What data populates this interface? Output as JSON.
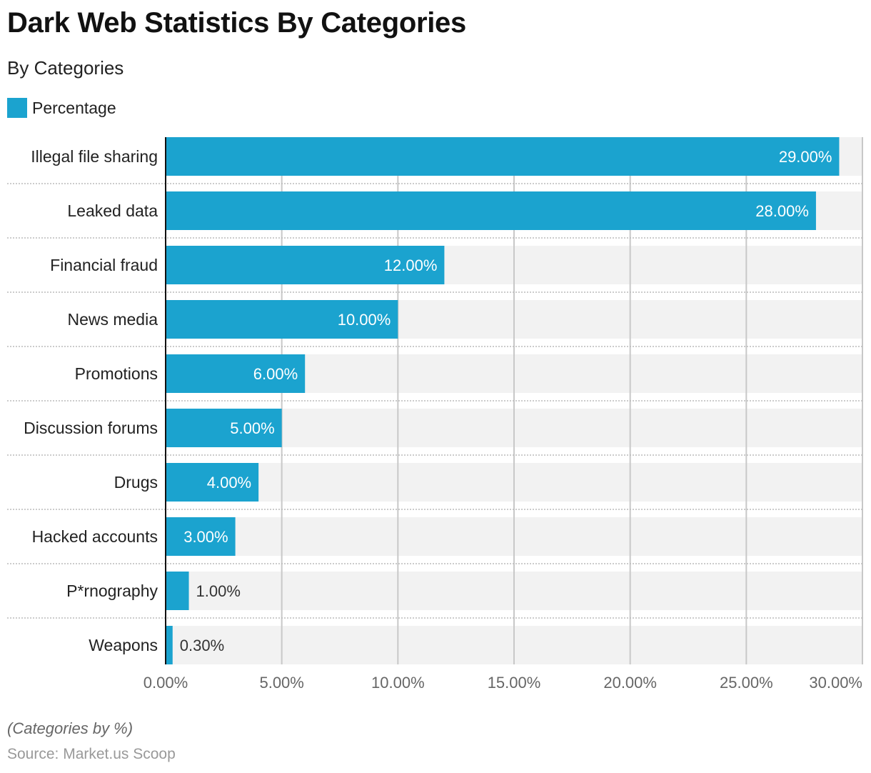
{
  "header": {
    "title": "Dark Web Statistics By Categories",
    "subtitle": "By Categories"
  },
  "legend": {
    "label": "Percentage",
    "color": "#1ba3cf"
  },
  "chart_data": {
    "type": "bar",
    "orientation": "horizontal",
    "title": "Dark Web Statistics By Categories",
    "subtitle": "By Categories",
    "xlabel": "",
    "ylabel": "",
    "xlim": [
      0,
      30
    ],
    "ticks": [
      0,
      5,
      10,
      15,
      20,
      25,
      30
    ],
    "tick_labels": [
      "0.00%",
      "5.00%",
      "10.00%",
      "15.00%",
      "20.00%",
      "25.00%",
      "30.00%"
    ],
    "grid": true,
    "legend_position": "top-left",
    "categories": [
      "Illegal file sharing",
      "Leaked data",
      "Financial fraud",
      "News media",
      "Promotions",
      "Discussion forums",
      "Drugs",
      "Hacked accounts",
      "P*rnography",
      "Weapons"
    ],
    "series": [
      {
        "name": "Percentage",
        "color": "#1ba3cf",
        "values": [
          29.0,
          28.0,
          12.0,
          10.0,
          6.0,
          5.0,
          4.0,
          3.0,
          1.0,
          0.3
        ],
        "labels": [
          "29.00%",
          "28.00%",
          "12.00%",
          "10.00%",
          "6.00%",
          "5.00%",
          "4.00%",
          "3.00%",
          "1.00%",
          "0.30%"
        ]
      }
    ]
  },
  "footer": {
    "note": "(Categories by %)",
    "source": "Source: Market.us Scoop"
  }
}
